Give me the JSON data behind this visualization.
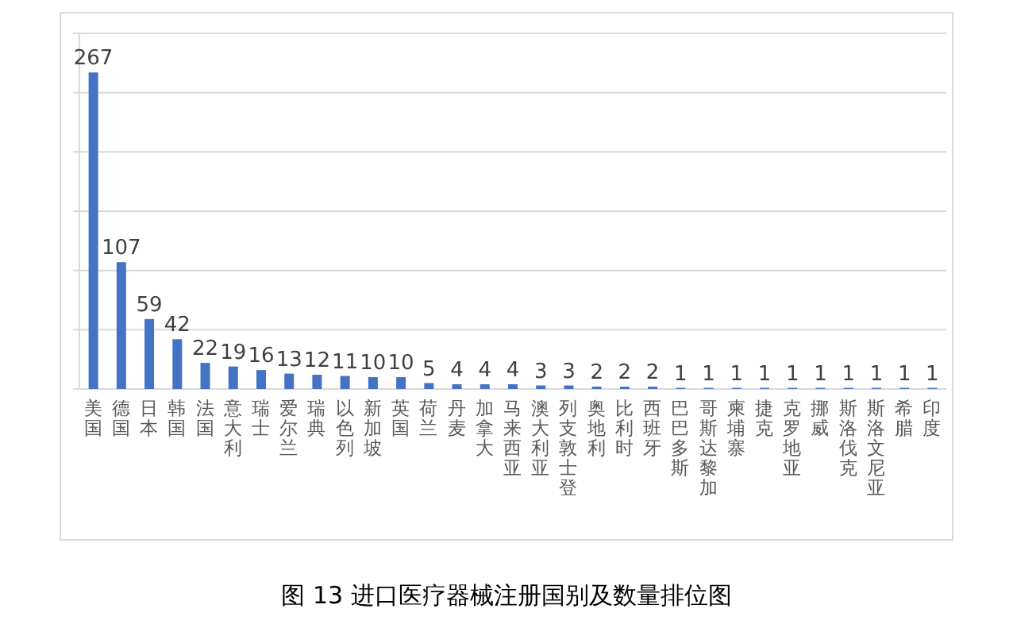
{
  "chart_data": {
    "type": "bar",
    "title": "图 13  进口医疗器械注册国别及数量排位图",
    "categories": [
      "美国",
      "德国",
      "日本",
      "韩国",
      "法国",
      "意大利",
      "瑞士",
      "爱尔兰",
      "瑞典",
      "以色列",
      "新加坡",
      "英国",
      "荷兰",
      "丹麦",
      "加拿大",
      "马来西亚",
      "澳大利亚",
      "列支敦士登",
      "奥地利",
      "比利时",
      "西班牙",
      "巴巴多斯",
      "哥斯达黎加",
      "柬埔寨",
      "捷克",
      "克罗地亚",
      "挪威",
      "斯洛伐克",
      "斯洛文尼亚",
      "希腊",
      "印度"
    ],
    "values": [
      267,
      107,
      59,
      42,
      22,
      19,
      16,
      13,
      12,
      11,
      10,
      10,
      5,
      4,
      4,
      4,
      3,
      3,
      2,
      2,
      2,
      1,
      1,
      1,
      1,
      1,
      1,
      1,
      1,
      1,
      1
    ],
    "color": "#4472c4",
    "ylim": [
      0,
      300
    ],
    "yticks": [
      {
        "value": 0,
        "label": null
      },
      {
        "value": 50,
        "label": null
      },
      {
        "value": 100,
        "label": null
      },
      {
        "value": 150,
        "label": null
      },
      {
        "value": 200,
        "label": null
      },
      {
        "value": 250,
        "label": null
      },
      {
        "value": 300,
        "label": null
      }
    ],
    "tick_labels": "x",
    "grid": "y",
    "data_labels": true
  }
}
